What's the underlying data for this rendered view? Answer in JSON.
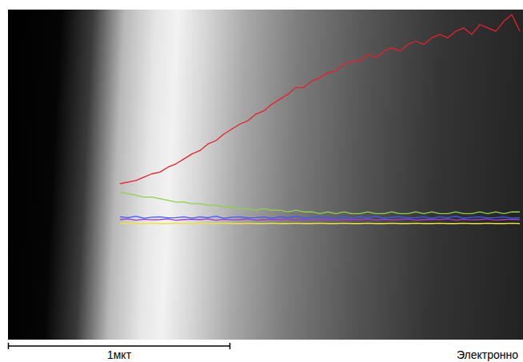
{
  "chart_data": {
    "type": "line",
    "x": [
      0,
      2,
      4,
      6,
      8,
      10,
      12,
      14,
      16,
      18,
      20,
      22,
      24,
      26,
      28,
      30,
      32,
      34,
      36,
      38,
      40,
      42,
      44,
      46,
      48,
      50,
      52,
      54,
      56,
      58,
      60,
      62,
      64,
      66,
      68,
      70,
      72,
      74,
      76,
      78,
      80,
      82,
      84,
      86,
      88,
      90,
      92,
      94,
      96,
      98,
      100
    ],
    "series": [
      {
        "color": "#e8202a",
        "values": [
          47,
          47.5,
          48,
          49,
          50,
          50.5,
          52,
          53,
          54.5,
          56,
          57,
          59,
          60,
          62,
          63.5,
          65,
          66,
          68,
          69,
          71,
          72.5,
          74,
          76,
          76,
          78,
          79,
          80.5,
          81,
          83,
          84,
          84,
          86,
          85,
          87,
          88,
          87,
          89,
          90,
          89,
          91,
          92,
          91,
          93,
          94,
          92,
          95,
          94,
          93,
          96,
          98,
          93
        ]
      },
      {
        "color": "#8fd14f",
        "values": [
          44.5,
          44,
          43.5,
          43,
          43,
          42.5,
          42,
          41.5,
          41.5,
          41,
          41,
          40.5,
          40.5,
          40,
          40,
          39.5,
          39.5,
          39,
          39.5,
          39,
          39,
          38.5,
          39,
          38.5,
          38.5,
          38,
          38.5,
          38,
          38.5,
          38,
          38,
          38.5,
          38,
          38,
          38.5,
          38,
          38,
          38.5,
          38,
          38.5,
          38,
          38,
          38.5,
          38,
          38,
          38.5,
          38,
          38.5,
          38,
          38.5,
          38.5
        ]
      },
      {
        "color": "#3b5bff",
        "values": [
          37,
          36.8,
          37.2,
          36.6,
          36.9,
          37,
          36.7,
          36.8,
          37,
          36.6,
          37,
          36.8,
          37.2,
          36.6,
          36.9,
          37,
          36.7,
          36.8,
          37,
          36.6,
          37,
          36.8,
          37.2,
          36.6,
          36.9,
          37,
          36.7,
          36.8,
          37,
          36.6,
          37,
          36.8,
          37.2,
          36.6,
          36.9,
          37,
          36.7,
          36.8,
          37,
          36.6,
          37,
          36.8,
          37.2,
          36.6,
          36.9,
          37,
          36.7,
          36.8,
          37,
          36.6,
          36.8
        ]
      },
      {
        "color": "#a040c0",
        "values": [
          36.2,
          36.4,
          36,
          36.3,
          36.1,
          36.2,
          36.4,
          36,
          36.2,
          36.3,
          36.2,
          36.4,
          36,
          36.3,
          36.1,
          36.2,
          36.4,
          36,
          36.2,
          36.3,
          36.2,
          36.4,
          36,
          36.3,
          36.1,
          36.2,
          36.4,
          36,
          36.2,
          36.3,
          36.2,
          36.4,
          36,
          36.3,
          36.1,
          36.2,
          36.4,
          36,
          36.2,
          36.3,
          36.2,
          36.4,
          36,
          36.3,
          36.1,
          36.2,
          36.4,
          36,
          36.2,
          36.3,
          36.2
        ]
      },
      {
        "color": "#f0e040",
        "values": [
          35,
          35.1,
          35,
          35,
          35.1,
          35,
          35,
          35.1,
          35,
          35,
          35.1,
          35,
          35,
          35.1,
          35,
          35,
          35.1,
          35,
          35,
          35.1,
          35,
          35,
          35.1,
          35,
          35,
          35.1,
          35,
          35,
          35.1,
          35,
          35,
          35.1,
          35,
          35,
          35.1,
          35,
          35,
          35.1,
          35,
          35,
          35.1,
          35,
          35,
          35.1,
          35,
          35,
          35.1,
          35,
          35,
          35.1,
          35
        ]
      }
    ],
    "xlim": [
      0,
      100
    ],
    "ylim": [
      0,
      100
    ],
    "grid": false,
    "tick_labels": false,
    "line_style": "solid",
    "scale_label": "1мкт",
    "image_caption": "Электронно"
  }
}
